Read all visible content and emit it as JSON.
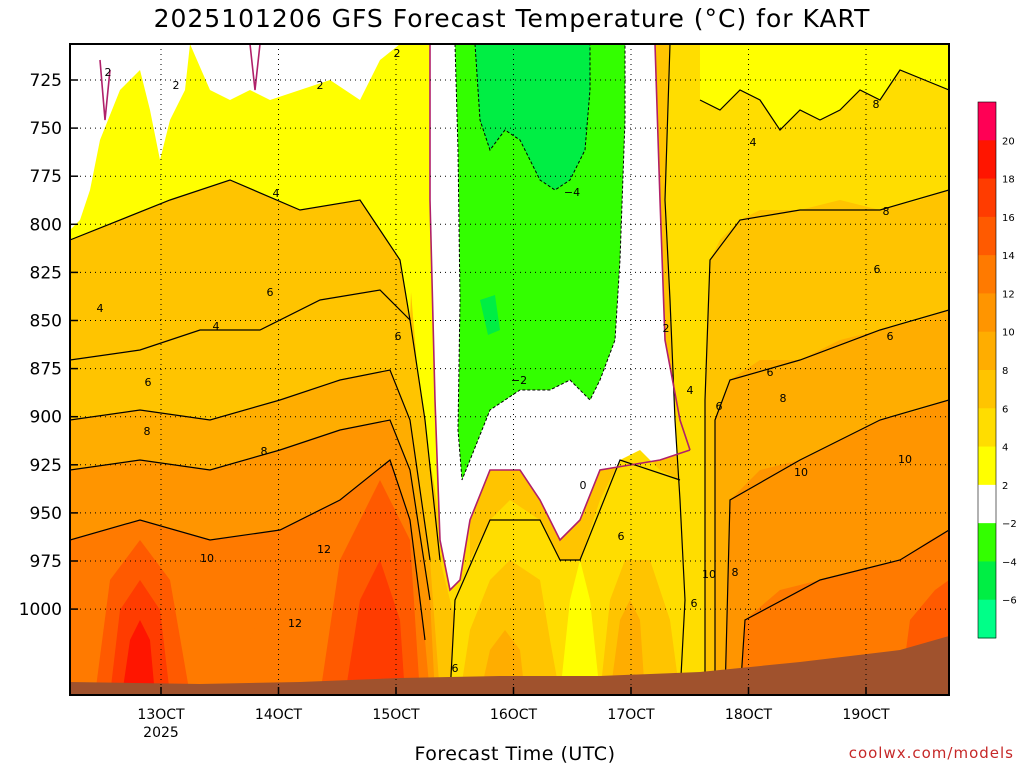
{
  "title": "2025101206 GFS Forecast Temperature (°C) for KART",
  "credit": "coolwx.com/models",
  "chart_data": {
    "type": "contour",
    "title": "2025101206 GFS Forecast Temperature (°C) for KART",
    "xlabel": "Forecast Time (UTC)",
    "ylabel": "",
    "y_ticks": [
      "725",
      "750",
      "775",
      "800",
      "825",
      "850",
      "875",
      "900",
      "925",
      "950",
      "975",
      "1000"
    ],
    "x_ticks": [
      {
        "label": "13OCT",
        "sub": "2025"
      },
      {
        "label": "14OCT",
        "sub": ""
      },
      {
        "label": "15OCT",
        "sub": ""
      },
      {
        "label": "16OCT",
        "sub": ""
      },
      {
        "label": "17OCT",
        "sub": ""
      },
      {
        "label": "18OCT",
        "sub": ""
      },
      {
        "label": "19OCT",
        "sub": ""
      }
    ],
    "colorbar": {
      "ticks": [
        "20",
        "18",
        "16",
        "14",
        "12",
        "10",
        "8",
        "6",
        "4",
        "2",
        "−2",
        "−4",
        "−6"
      ],
      "colors": [
        "#ff0055",
        "#ff1500",
        "#ff3c00",
        "#ff5a00",
        "#ff7a00",
        "#ff9500",
        "#ffad00",
        "#ffc400",
        "#ffdd00",
        "#ffff00",
        "#ffffff",
        "#33ff00",
        "#00ee44",
        "#00ff88"
      ]
    },
    "contour_labels": [
      "2",
      "2",
      "2",
      "2",
      "4",
      "4",
      "4",
      "−4",
      "4",
      "6",
      "6",
      "6",
      "2",
      "6",
      "8",
      "6",
      "8",
      "8",
      "6",
      "8",
      "8",
      "−2",
      "0",
      "10",
      "10",
      "10",
      "6",
      "12",
      "12",
      "6",
      "8",
      "10",
      "6",
      "4",
      "6"
    ]
  }
}
